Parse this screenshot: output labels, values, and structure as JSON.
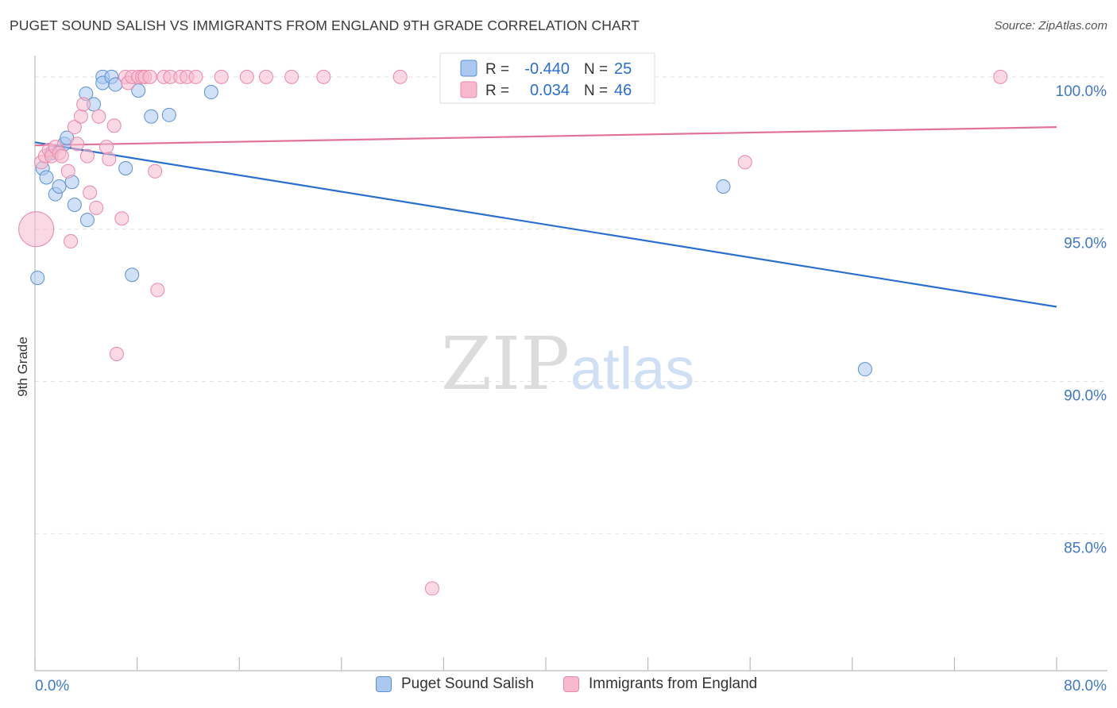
{
  "header": {
    "title": "PUGET SOUND SALISH VS IMMIGRANTS FROM ENGLAND 9TH GRADE CORRELATION CHART",
    "source": "Source: ZipAtlas.com"
  },
  "watermark": {
    "zip": "ZIP",
    "atlas": "atlas"
  },
  "legend_top": {
    "rows": [
      {
        "r_label": "R =",
        "r_value": "-0.440",
        "n_label": "N =",
        "n_value": "25"
      },
      {
        "r_label": "R =",
        "r_value": "0.034",
        "n_label": "N =",
        "n_value": "46"
      }
    ]
  },
  "colors": {
    "blue_fill": "#aac8f0",
    "blue_stroke": "#5a8fd6",
    "blue_line": "#2a6fd0",
    "pink_fill": "#f6b9cd",
    "pink_stroke": "#e889a8",
    "pink_line": "#e2729a",
    "tick_label": "#3f78c8",
    "grid": "#e2e2e2",
    "axis": "#bbbbbb"
  },
  "chart_data": {
    "type": "scatter",
    "title": "PUGET SOUND SALISH VS IMMIGRANTS FROM ENGLAND 9TH GRADE CORRELATION CHART",
    "xlabel": "",
    "ylabel": "9th Grade",
    "xlim": [
      0,
      80
    ],
    "ylim": [
      80.5,
      100.7
    ],
    "x_tick_labels": [
      "0.0%",
      "80.0%"
    ],
    "y_ticks": [
      85,
      90,
      95,
      100
    ],
    "y_tick_labels": [
      "85.0%",
      "90.0%",
      "95.0%",
      "100.0%"
    ],
    "grid": true,
    "legend_placement": "top-center and bottom",
    "series": [
      {
        "name": "Puget Sound Salish",
        "color": "#aac8f0",
        "r": -0.44,
        "n": 25,
        "trend": {
          "x": [
            0,
            80
          ],
          "y": [
            97.85,
            92.45
          ]
        },
        "points": [
          {
            "x": 0.2,
            "y": 93.4
          },
          {
            "x": 0.6,
            "y": 97.0
          },
          {
            "x": 0.9,
            "y": 96.7
          },
          {
            "x": 1.6,
            "y": 96.15
          },
          {
            "x": 1.9,
            "y": 96.4
          },
          {
            "x": 2.3,
            "y": 97.8
          },
          {
            "x": 2.5,
            "y": 98.0
          },
          {
            "x": 2.9,
            "y": 96.55
          },
          {
            "x": 3.1,
            "y": 95.8
          },
          {
            "x": 4.0,
            "y": 99.45
          },
          {
            "x": 4.1,
            "y": 95.3
          },
          {
            "x": 4.6,
            "y": 99.1
          },
          {
            "x": 5.3,
            "y": 100.0
          },
          {
            "x": 5.3,
            "y": 99.8
          },
          {
            "x": 6.0,
            "y": 100.0
          },
          {
            "x": 6.3,
            "y": 99.75
          },
          {
            "x": 7.1,
            "y": 97.0
          },
          {
            "x": 7.6,
            "y": 93.5
          },
          {
            "x": 8.1,
            "y": 99.55
          },
          {
            "x": 9.1,
            "y": 98.7
          },
          {
            "x": 10.5,
            "y": 98.75
          },
          {
            "x": 13.8,
            "y": 99.5
          },
          {
            "x": 53.9,
            "y": 96.4
          },
          {
            "x": 65.0,
            "y": 90.4
          },
          {
            "x": 1.3,
            "y": 97.5
          }
        ]
      },
      {
        "name": "Immigrants from England",
        "color": "#f6b9cd",
        "r": 0.034,
        "n": 46,
        "trend": {
          "x": [
            0,
            80
          ],
          "y": [
            97.75,
            98.35
          ]
        },
        "points": [
          {
            "x": 0.1,
            "y": 95.0,
            "big": true
          },
          {
            "x": 0.5,
            "y": 97.2
          },
          {
            "x": 0.8,
            "y": 97.4
          },
          {
            "x": 1.1,
            "y": 97.6
          },
          {
            "x": 1.3,
            "y": 97.4
          },
          {
            "x": 1.6,
            "y": 97.7
          },
          {
            "x": 1.9,
            "y": 97.5
          },
          {
            "x": 2.1,
            "y": 97.4
          },
          {
            "x": 2.6,
            "y": 96.9
          },
          {
            "x": 2.8,
            "y": 94.6
          },
          {
            "x": 3.1,
            "y": 98.35
          },
          {
            "x": 3.3,
            "y": 97.8
          },
          {
            "x": 3.6,
            "y": 98.7
          },
          {
            "x": 3.8,
            "y": 99.1
          },
          {
            "x": 4.1,
            "y": 97.4
          },
          {
            "x": 4.3,
            "y": 96.2
          },
          {
            "x": 4.8,
            "y": 95.7
          },
          {
            "x": 5.0,
            "y": 98.7
          },
          {
            "x": 5.6,
            "y": 97.7
          },
          {
            "x": 5.8,
            "y": 97.3
          },
          {
            "x": 6.2,
            "y": 98.4
          },
          {
            "x": 6.4,
            "y": 90.9
          },
          {
            "x": 6.8,
            "y": 95.35
          },
          {
            "x": 7.1,
            "y": 100.0
          },
          {
            "x": 7.3,
            "y": 99.8
          },
          {
            "x": 7.6,
            "y": 100.0
          },
          {
            "x": 8.1,
            "y": 100.0
          },
          {
            "x": 8.4,
            "y": 100.0
          },
          {
            "x": 8.6,
            "y": 100.0
          },
          {
            "x": 9.0,
            "y": 100.0
          },
          {
            "x": 9.4,
            "y": 96.9
          },
          {
            "x": 9.6,
            "y": 93.0
          },
          {
            "x": 10.1,
            "y": 100.0
          },
          {
            "x": 10.6,
            "y": 100.0
          },
          {
            "x": 11.4,
            "y": 100.0
          },
          {
            "x": 11.9,
            "y": 100.0
          },
          {
            "x": 12.6,
            "y": 100.0
          },
          {
            "x": 14.6,
            "y": 100.0
          },
          {
            "x": 16.6,
            "y": 100.0
          },
          {
            "x": 18.1,
            "y": 100.0
          },
          {
            "x": 20.1,
            "y": 100.0
          },
          {
            "x": 28.6,
            "y": 100.0
          },
          {
            "x": 31.1,
            "y": 83.2
          },
          {
            "x": 55.6,
            "y": 97.2
          },
          {
            "x": 75.6,
            "y": 100.0
          },
          {
            "x": 22.6,
            "y": 100.0
          }
        ]
      }
    ]
  }
}
